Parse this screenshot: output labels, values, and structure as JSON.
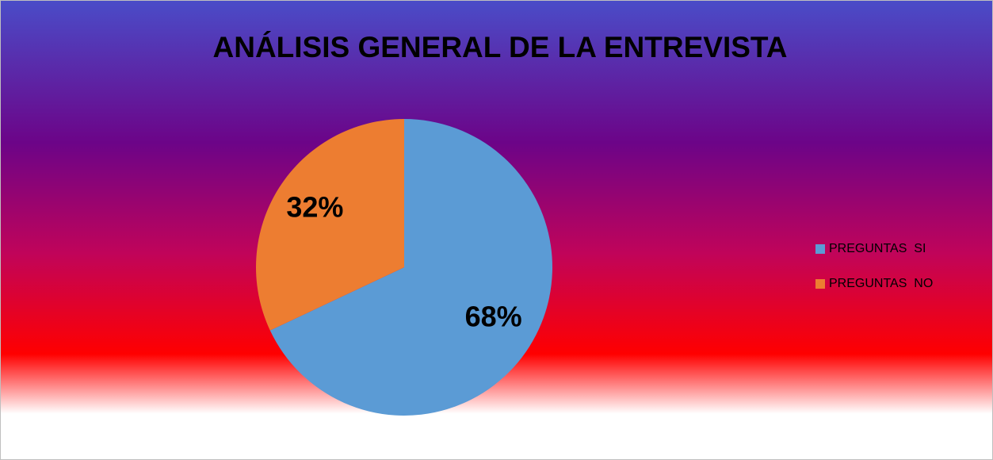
{
  "chart_data": {
    "type": "pie",
    "title": "ANÁLISIS GENERAL DE LA ENTREVISTA",
    "categories": [
      "PREGUNTAS  SI",
      "PREGUNTAS  NO"
    ],
    "values": [
      68,
      32
    ],
    "value_labels": [
      "68%",
      "32%"
    ],
    "colors": [
      "#5b9bd5",
      "#ed7d31"
    ],
    "legend": "right"
  }
}
